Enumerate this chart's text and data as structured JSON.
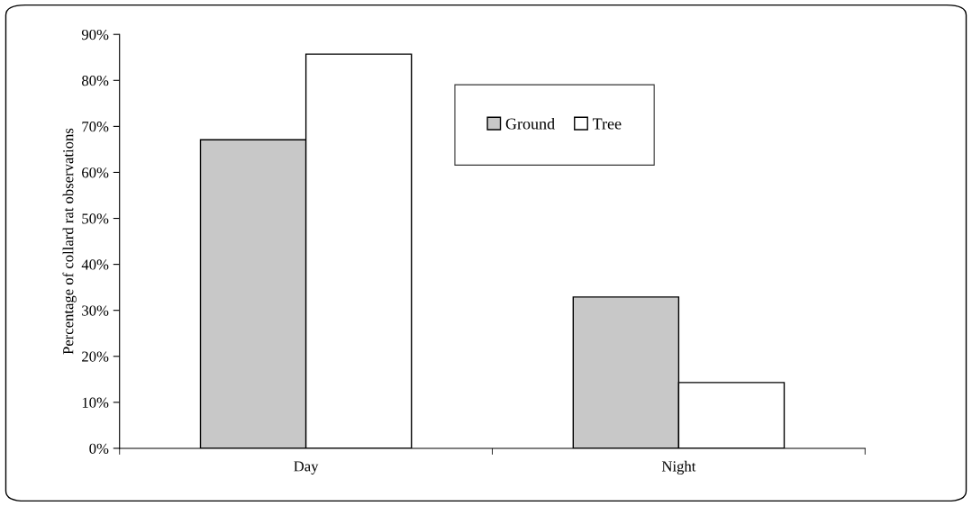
{
  "chart_data": {
    "type": "bar",
    "ylabel": "Percentage of collard rat observations",
    "categories": [
      "Day",
      "Night"
    ],
    "series": [
      {
        "name": "Ground",
        "color": "#c8c8c8",
        "values": [
          67.1,
          32.9
        ]
      },
      {
        "name": "Tree",
        "color": "#ffffff",
        "values": [
          85.7,
          14.3
        ]
      }
    ],
    "ylim": [
      0,
      90
    ],
    "yticks": [
      {
        "value": 0,
        "label": "0%"
      },
      {
        "value": 10,
        "label": "10%"
      },
      {
        "value": 20,
        "label": "20%"
      },
      {
        "value": 30,
        "label": "30%"
      },
      {
        "value": 40,
        "label": "40%"
      },
      {
        "value": 50,
        "label": "50%"
      },
      {
        "value": 60,
        "label": "60%"
      },
      {
        "value": 70,
        "label": "70%"
      },
      {
        "value": 80,
        "label": "80%"
      },
      {
        "value": 90,
        "label": "90%"
      }
    ],
    "grid": false,
    "legend": "top right"
  }
}
